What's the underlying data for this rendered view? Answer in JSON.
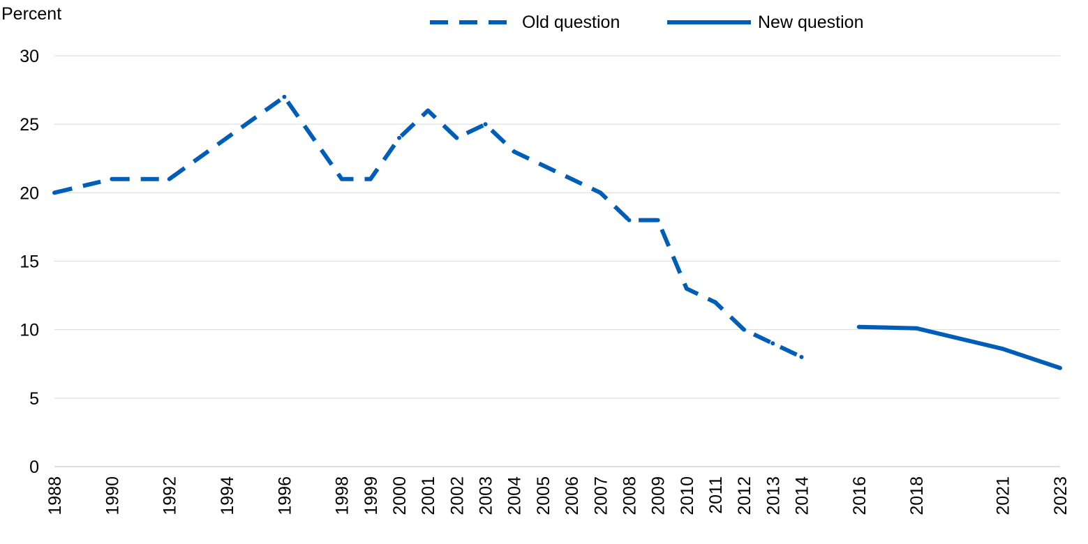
{
  "chart_data": {
    "type": "line",
    "ylabel": "Percent",
    "ylim": [
      0,
      30
    ],
    "yticks": [
      0,
      5,
      10,
      15,
      20,
      25,
      30
    ],
    "grid": true,
    "legend_position": "top",
    "colors": {
      "series": "#005EB8",
      "grid": "#D9D9D9",
      "text": "#000000"
    },
    "x_categories": [
      "1988",
      "1990",
      "1992",
      "1994",
      "1996",
      "1998",
      "1999",
      "2000",
      "2001",
      "2002",
      "2003",
      "2004",
      "2005",
      "2006",
      "2007",
      "2008",
      "2009",
      "2010",
      "2011",
      "2012",
      "2013",
      "2014",
      "2016",
      "2018",
      "2021",
      "2023"
    ],
    "series": [
      {
        "name": "Old question",
        "style": "dashed",
        "points": [
          {
            "x": 1988,
            "y": 20
          },
          {
            "x": 1990,
            "y": 21
          },
          {
            "x": 1992,
            "y": 21
          },
          {
            "x": 1994,
            "y": 24
          },
          {
            "x": 1996,
            "y": 27
          },
          {
            "x": 1998,
            "y": 21
          },
          {
            "x": 1999,
            "y": 21
          },
          {
            "x": 2000,
            "y": 24
          },
          {
            "x": 2001,
            "y": 26
          },
          {
            "x": 2002,
            "y": 24
          },
          {
            "x": 2003,
            "y": 25
          },
          {
            "x": 2004,
            "y": 23
          },
          {
            "x": 2005,
            "y": 22
          },
          {
            "x": 2006,
            "y": 21
          },
          {
            "x": 2007,
            "y": 20
          },
          {
            "x": 2008,
            "y": 18
          },
          {
            "x": 2009,
            "y": 18
          },
          {
            "x": 2010,
            "y": 13
          },
          {
            "x": 2011,
            "y": 12
          },
          {
            "x": 2012,
            "y": 10
          },
          {
            "x": 2013,
            "y": 9
          },
          {
            "x": 2014,
            "y": 8
          }
        ]
      },
      {
        "name": "New question",
        "style": "solid",
        "points": [
          {
            "x": 2016,
            "y": 10.2
          },
          {
            "x": 2018,
            "y": 10.1
          },
          {
            "x": 2021,
            "y": 8.6
          },
          {
            "x": 2023,
            "y": 7.2
          }
        ]
      }
    ]
  }
}
